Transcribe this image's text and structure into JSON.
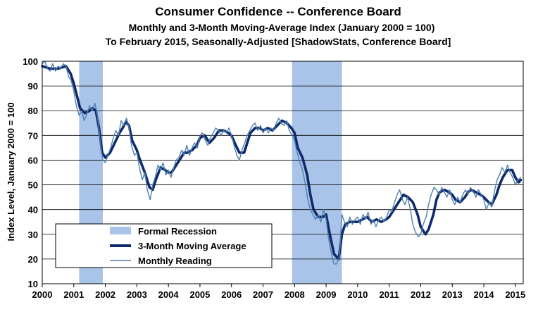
{
  "chart_data": {
    "type": "line",
    "title": "Consumer Confidence -- Conference Board",
    "subtitle_lines": [
      "Monthly and 3-Month Moving-Average Index (January 2000 = 100)",
      "To February 2015, Seasonally-Adjusted [ShadowStats, Conference Board]"
    ],
    "ylabel": "Index Level, January 2000 = 100",
    "xlabel": "",
    "xlim": [
      2000,
      2015.25
    ],
    "ylim": [
      10,
      100
    ],
    "x_ticks": [
      "2000",
      "2001",
      "2002",
      "2003",
      "2004",
      "2005",
      "2006",
      "2007",
      "2008",
      "2009",
      "2010",
      "2011",
      "2012",
      "2013",
      "2014",
      "2015"
    ],
    "y_ticks": [
      10,
      20,
      30,
      40,
      50,
      60,
      70,
      80,
      90,
      100
    ],
    "grid": "horizontal",
    "legend_position": "bottom-left",
    "legend": [
      {
        "label": "Formal Recession",
        "kind": "area",
        "color": "#a9c4e8"
      },
      {
        "label": "3-Month Moving Average",
        "kind": "line",
        "color": "#0e2a6b"
      },
      {
        "label": "Monthly Reading",
        "kind": "line",
        "color": "#4f7fae"
      }
    ],
    "recessions": [
      {
        "start": 2001.17,
        "end": 2001.92
      },
      {
        "start": 2007.92,
        "end": 2009.5
      }
    ],
    "series": [
      {
        "name": "3-Month Moving Average",
        "color": "#0e2a6b",
        "points": [
          [
            2000.0,
            98
          ],
          [
            2000.25,
            97
          ],
          [
            2000.5,
            97
          ],
          [
            2000.75,
            98
          ],
          [
            2000.9,
            95
          ],
          [
            2001.0,
            91
          ],
          [
            2001.1,
            86
          ],
          [
            2001.2,
            81
          ],
          [
            2001.35,
            79
          ],
          [
            2001.5,
            80
          ],
          [
            2001.6,
            81
          ],
          [
            2001.7,
            80
          ],
          [
            2001.8,
            73
          ],
          [
            2001.9,
            63
          ],
          [
            2002.0,
            61
          ],
          [
            2002.15,
            63
          ],
          [
            2002.3,
            67
          ],
          [
            2002.45,
            71
          ],
          [
            2002.55,
            73
          ],
          [
            2002.65,
            75.5
          ],
          [
            2002.75,
            74
          ],
          [
            2002.85,
            68
          ],
          [
            2003.0,
            64
          ],
          [
            2003.1,
            60
          ],
          [
            2003.25,
            55
          ],
          [
            2003.4,
            49
          ],
          [
            2003.5,
            48
          ],
          [
            2003.6,
            52
          ],
          [
            2003.75,
            57
          ],
          [
            2003.9,
            56
          ],
          [
            2004.0,
            55
          ],
          [
            2004.1,
            55
          ],
          [
            2004.25,
            58
          ],
          [
            2004.4,
            61
          ],
          [
            2004.5,
            63
          ],
          [
            2004.6,
            63
          ],
          [
            2004.75,
            64
          ],
          [
            2004.9,
            66
          ],
          [
            2005.0,
            69
          ],
          [
            2005.15,
            70
          ],
          [
            2005.3,
            67
          ],
          [
            2005.45,
            69
          ],
          [
            2005.6,
            72
          ],
          [
            2005.75,
            72
          ],
          [
            2005.9,
            71
          ],
          [
            2006.0,
            70
          ],
          [
            2006.1,
            67
          ],
          [
            2006.25,
            63
          ],
          [
            2006.4,
            63
          ],
          [
            2006.5,
            67
          ],
          [
            2006.6,
            71
          ],
          [
            2006.75,
            73
          ],
          [
            2006.9,
            73
          ],
          [
            2007.0,
            72
          ],
          [
            2007.15,
            73
          ],
          [
            2007.3,
            72
          ],
          [
            2007.45,
            74
          ],
          [
            2007.6,
            76
          ],
          [
            2007.75,
            75
          ],
          [
            2007.9,
            73
          ],
          [
            2008.0,
            71
          ],
          [
            2008.1,
            65
          ],
          [
            2008.25,
            61
          ],
          [
            2008.4,
            54
          ],
          [
            2008.5,
            46
          ],
          [
            2008.6,
            40
          ],
          [
            2008.75,
            37
          ],
          [
            2008.9,
            37
          ],
          [
            2009.0,
            38
          ],
          [
            2009.1,
            31
          ],
          [
            2009.25,
            22
          ],
          [
            2009.4,
            20
          ],
          [
            2009.5,
            30
          ],
          [
            2009.6,
            34
          ],
          [
            2009.75,
            35
          ],
          [
            2009.9,
            35
          ],
          [
            2010.0,
            35
          ],
          [
            2010.15,
            36
          ],
          [
            2010.3,
            37
          ],
          [
            2010.45,
            35
          ],
          [
            2010.6,
            36
          ],
          [
            2010.75,
            35
          ],
          [
            2010.9,
            36
          ],
          [
            2011.0,
            37
          ],
          [
            2011.15,
            40
          ],
          [
            2011.3,
            43
          ],
          [
            2011.45,
            46
          ],
          [
            2011.6,
            45
          ],
          [
            2011.75,
            43
          ],
          [
            2011.9,
            38
          ],
          [
            2012.0,
            33
          ],
          [
            2012.15,
            30
          ],
          [
            2012.25,
            32
          ],
          [
            2012.4,
            38
          ],
          [
            2012.5,
            44
          ],
          [
            2012.6,
            47
          ],
          [
            2012.75,
            48
          ],
          [
            2012.9,
            47
          ],
          [
            2013.0,
            46
          ],
          [
            2013.1,
            44
          ],
          [
            2013.25,
            43
          ],
          [
            2013.4,
            45
          ],
          [
            2013.5,
            47
          ],
          [
            2013.6,
            48
          ],
          [
            2013.75,
            47
          ],
          [
            2013.9,
            46
          ],
          [
            2014.0,
            45
          ],
          [
            2014.15,
            43
          ],
          [
            2014.25,
            42
          ],
          [
            2014.4,
            46
          ],
          [
            2014.5,
            50
          ],
          [
            2014.6,
            53
          ],
          [
            2014.75,
            56
          ],
          [
            2014.9,
            56
          ],
          [
            2015.0,
            53
          ],
          [
            2015.1,
            51
          ],
          [
            2015.17,
            52
          ]
        ]
      },
      {
        "name": "Monthly Reading",
        "color": "#4f7fae",
        "points": [
          [
            2000.0,
            99
          ],
          [
            2000.08,
            100
          ],
          [
            2000.17,
            97
          ],
          [
            2000.25,
            96
          ],
          [
            2000.33,
            99
          ],
          [
            2000.42,
            96
          ],
          [
            2000.5,
            98
          ],
          [
            2000.58,
            97
          ],
          [
            2000.67,
            99
          ],
          [
            2000.75,
            98
          ],
          [
            2000.83,
            94
          ],
          [
            2000.92,
            92
          ],
          [
            2001.0,
            88
          ],
          [
            2001.08,
            82
          ],
          [
            2001.17,
            78
          ],
          [
            2001.25,
            80
          ],
          [
            2001.33,
            76
          ],
          [
            2001.42,
            79
          ],
          [
            2001.5,
            82
          ],
          [
            2001.58,
            80
          ],
          [
            2001.67,
            83
          ],
          [
            2001.75,
            78
          ],
          [
            2001.83,
            68
          ],
          [
            2001.92,
            60
          ],
          [
            2002.0,
            59
          ],
          [
            2002.08,
            62
          ],
          [
            2002.17,
            65
          ],
          [
            2002.25,
            69
          ],
          [
            2002.33,
            72
          ],
          [
            2002.42,
            70
          ],
          [
            2002.5,
            76
          ],
          [
            2002.58,
            74
          ],
          [
            2002.67,
            77
          ],
          [
            2002.75,
            73
          ],
          [
            2002.83,
            66
          ],
          [
            2002.92,
            62
          ],
          [
            2003.0,
            63
          ],
          [
            2003.08,
            57
          ],
          [
            2003.17,
            52
          ],
          [
            2003.25,
            55
          ],
          [
            2003.33,
            48
          ],
          [
            2003.42,
            44
          ],
          [
            2003.5,
            50
          ],
          [
            2003.58,
            53
          ],
          [
            2003.67,
            58
          ],
          [
            2003.75,
            56
          ],
          [
            2003.83,
            59
          ],
          [
            2003.92,
            54
          ],
          [
            2004.0,
            56
          ],
          [
            2004.08,
            53
          ],
          [
            2004.17,
            57
          ],
          [
            2004.25,
            60
          ],
          [
            2004.33,
            61
          ],
          [
            2004.42,
            64
          ],
          [
            2004.5,
            62
          ],
          [
            2004.58,
            66
          ],
          [
            2004.67,
            62
          ],
          [
            2004.75,
            65
          ],
          [
            2004.83,
            67
          ],
          [
            2004.92,
            65
          ],
          [
            2005.0,
            70
          ],
          [
            2005.08,
            71
          ],
          [
            2005.17,
            68
          ],
          [
            2005.25,
            66
          ],
          [
            2005.33,
            69
          ],
          [
            2005.42,
            71
          ],
          [
            2005.5,
            73
          ],
          [
            2005.58,
            72
          ],
          [
            2005.67,
            70
          ],
          [
            2005.75,
            72
          ],
          [
            2005.83,
            71
          ],
          [
            2005.92,
            73
          ],
          [
            2006.0,
            70
          ],
          [
            2006.08,
            66
          ],
          [
            2006.17,
            62
          ],
          [
            2006.25,
            60
          ],
          [
            2006.33,
            64
          ],
          [
            2006.42,
            67
          ],
          [
            2006.5,
            70
          ],
          [
            2006.58,
            72
          ],
          [
            2006.67,
            74
          ],
          [
            2006.75,
            75
          ],
          [
            2006.83,
            72
          ],
          [
            2006.92,
            74
          ],
          [
            2007.0,
            71
          ],
          [
            2007.08,
            73
          ],
          [
            2007.17,
            71
          ],
          [
            2007.25,
            73
          ],
          [
            2007.33,
            72
          ],
          [
            2007.42,
            75
          ],
          [
            2007.5,
            77
          ],
          [
            2007.58,
            75
          ],
          [
            2007.67,
            74
          ],
          [
            2007.75,
            76
          ],
          [
            2007.83,
            72
          ],
          [
            2007.92,
            70
          ],
          [
            2008.0,
            68
          ],
          [
            2008.08,
            63
          ],
          [
            2008.17,
            59
          ],
          [
            2008.25,
            56
          ],
          [
            2008.33,
            51
          ],
          [
            2008.42,
            44
          ],
          [
            2008.5,
            40
          ],
          [
            2008.58,
            38
          ],
          [
            2008.67,
            36
          ],
          [
            2008.75,
            38
          ],
          [
            2008.83,
            35
          ],
          [
            2008.92,
            40
          ],
          [
            2009.0,
            36
          ],
          [
            2009.08,
            28
          ],
          [
            2009.17,
            22
          ],
          [
            2009.25,
            18
          ],
          [
            2009.33,
            18
          ],
          [
            2009.42,
            21
          ],
          [
            2009.5,
            38
          ],
          [
            2009.58,
            35
          ],
          [
            2009.67,
            33
          ],
          [
            2009.75,
            37
          ],
          [
            2009.83,
            34
          ],
          [
            2009.92,
            36
          ],
          [
            2010.0,
            37
          ],
          [
            2010.08,
            34
          ],
          [
            2010.17,
            38
          ],
          [
            2010.25,
            36
          ],
          [
            2010.33,
            39
          ],
          [
            2010.42,
            34
          ],
          [
            2010.5,
            36
          ],
          [
            2010.58,
            33
          ],
          [
            2010.67,
            36
          ],
          [
            2010.75,
            37
          ],
          [
            2010.83,
            35
          ],
          [
            2010.92,
            37
          ],
          [
            2011.0,
            40
          ],
          [
            2011.08,
            39
          ],
          [
            2011.17,
            43
          ],
          [
            2011.25,
            46
          ],
          [
            2011.33,
            48
          ],
          [
            2011.42,
            44
          ],
          [
            2011.5,
            42
          ],
          [
            2011.58,
            45
          ],
          [
            2011.67,
            40
          ],
          [
            2011.75,
            34
          ],
          [
            2011.83,
            31
          ],
          [
            2011.92,
            29
          ],
          [
            2012.0,
            30
          ],
          [
            2012.08,
            34
          ],
          [
            2012.17,
            37
          ],
          [
            2012.25,
            42
          ],
          [
            2012.33,
            46
          ],
          [
            2012.42,
            49
          ],
          [
            2012.5,
            48
          ],
          [
            2012.58,
            46
          ],
          [
            2012.67,
            49
          ],
          [
            2012.75,
            47
          ],
          [
            2012.83,
            45
          ],
          [
            2012.92,
            48
          ],
          [
            2013.0,
            44
          ],
          [
            2013.08,
            42
          ],
          [
            2013.17,
            45
          ],
          [
            2013.25,
            43
          ],
          [
            2013.33,
            46
          ],
          [
            2013.42,
            48
          ],
          [
            2013.5,
            46
          ],
          [
            2013.58,
            49
          ],
          [
            2013.67,
            47
          ],
          [
            2013.75,
            45
          ],
          [
            2013.83,
            48
          ],
          [
            2013.92,
            46
          ],
          [
            2014.0,
            44
          ],
          [
            2014.08,
            40
          ],
          [
            2014.17,
            43
          ],
          [
            2014.25,
            41
          ],
          [
            2014.33,
            47
          ],
          [
            2014.42,
            52
          ],
          [
            2014.5,
            54
          ],
          [
            2014.58,
            57
          ],
          [
            2014.67,
            55
          ],
          [
            2014.75,
            58
          ],
          [
            2014.83,
            55
          ],
          [
            2014.92,
            53
          ],
          [
            2015.0,
            50
          ],
          [
            2015.08,
            52
          ],
          [
            2015.17,
            53
          ]
        ]
      }
    ]
  }
}
